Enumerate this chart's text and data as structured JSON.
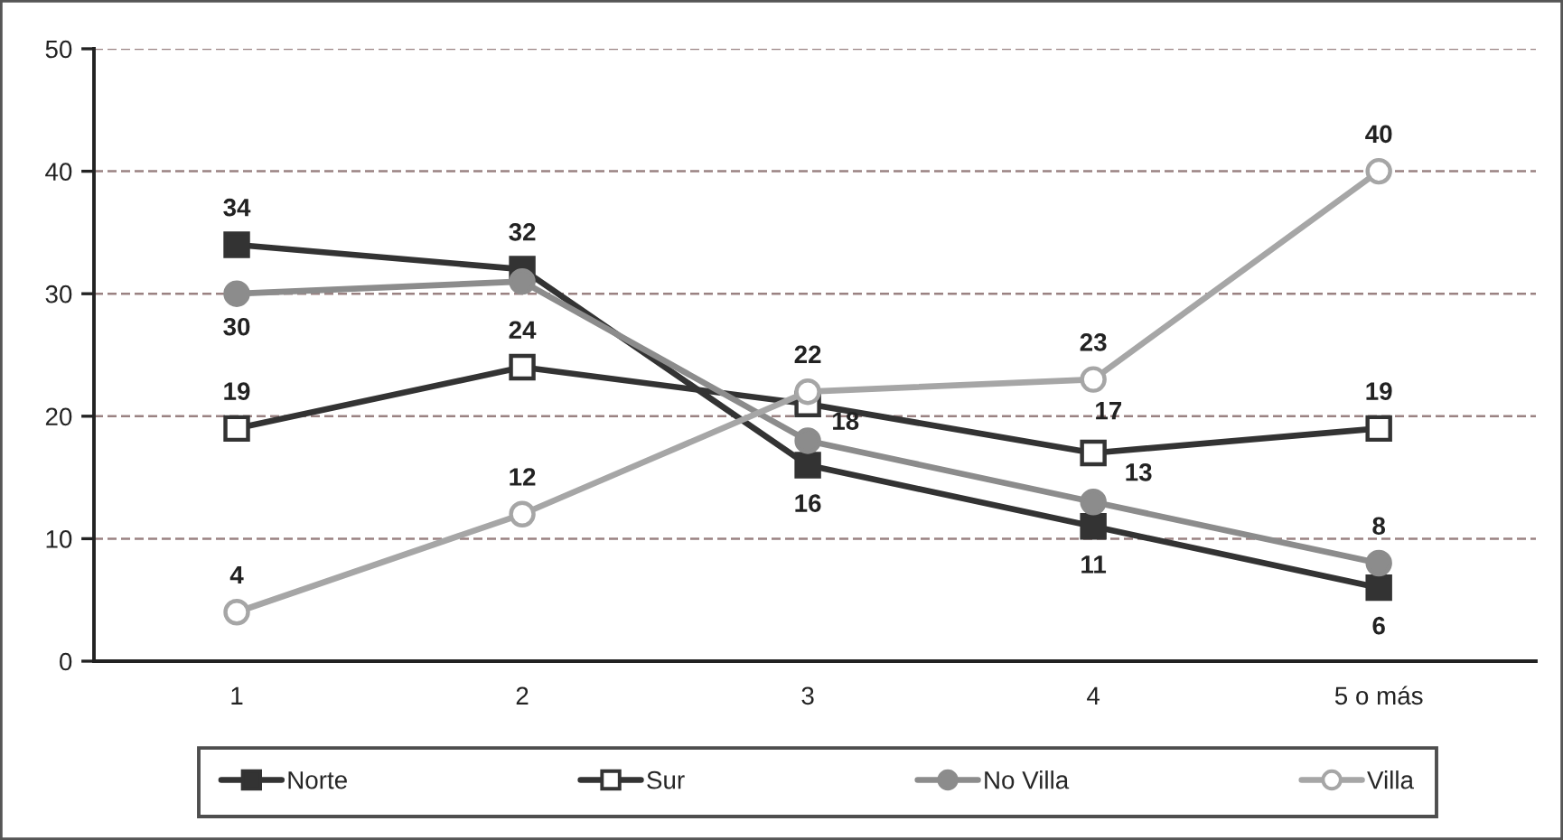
{
  "chart_data": {
    "type": "line",
    "categories": [
      "1",
      "2",
      "3",
      "4",
      "5 o más"
    ],
    "series": [
      {
        "name": "Norte",
        "color": "#333333",
        "marker": "square",
        "values": [
          34,
          32,
          16,
          11,
          6
        ],
        "value_labels": [
          "34",
          "32",
          "16",
          "11",
          "6"
        ]
      },
      {
        "name": "Sur",
        "color": "#333333",
        "marker": "square",
        "values": [
          19,
          24,
          21,
          17,
          19
        ],
        "value_labels": [
          "19",
          "24",
          null,
          "17",
          "19"
        ]
      },
      {
        "name": "No Villa",
        "color": "#8c8c8c",
        "marker": "circle",
        "values": [
          30,
          31,
          18,
          13,
          8
        ],
        "value_labels": [
          "30",
          null,
          "18",
          "13",
          "8"
        ]
      },
      {
        "name": "Villa",
        "color": "#a6a6a6",
        "marker": "circle",
        "values": [
          4,
          12,
          22,
          23,
          40
        ],
        "value_labels": [
          "4",
          "12",
          "22",
          "23",
          "40"
        ]
      }
    ],
    "ylim": [
      0,
      50
    ],
    "yticks": [
      0,
      10,
      20,
      30,
      40,
      50
    ],
    "grid": "y",
    "legend": "bottom"
  }
}
